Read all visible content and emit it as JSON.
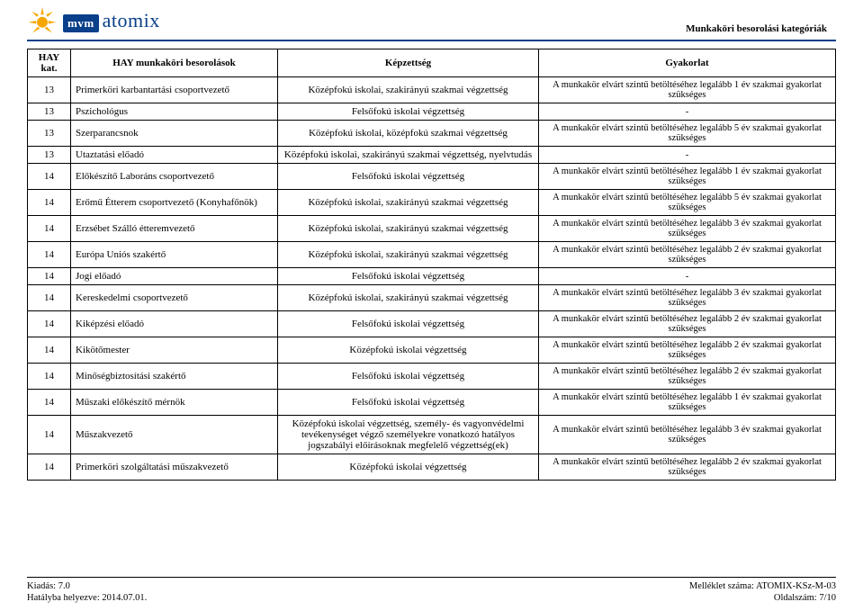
{
  "header": {
    "logo_mvm": "mvm",
    "logo_atomix": "atomix",
    "category": "Munkaköri besorolási kategóriák",
    "sun_color_outer": "#f7a600",
    "sun_color_inner": "#f7a600",
    "brand_blue": "#0a3f8a"
  },
  "table": {
    "headers": {
      "h1": "HAY kat.",
      "h2": "HAY munkaköri besorolások",
      "h3": "Képzettség",
      "h4": "Gyakorlat"
    },
    "rows": [
      {
        "n": "13",
        "role": "Primerköri karbantartási csoportvezető",
        "edu": "Középfokú iskolai, szakirányú szakmai végzettség",
        "req": "A munkakör elvárt szintű betöltéséhez legalább 1 év szakmai gyakorlat szükséges"
      },
      {
        "n": "13",
        "role": "Pszichológus",
        "edu": "Felsőfokú iskolai végzettség",
        "req": "-"
      },
      {
        "n": "13",
        "role": "Szerparancsnok",
        "edu": "Középfokú iskolai, középfokú szakmai végzettség",
        "req": "A munkakör elvárt szintű betöltéséhez legalább 5 év szakmai gyakorlat szükséges"
      },
      {
        "n": "13",
        "role": "Utaztatási előadó",
        "edu": "Középfokú iskolai, szakirányú szakmai végzettség, nyelvtudás",
        "req": "-"
      },
      {
        "n": "14",
        "role": "Előkészítő Laboráns csoportvezető",
        "edu": "Felsőfokú iskolai végzettség",
        "req": "A munkakör elvárt szintű betöltéséhez legalább 1 év szakmai gyakorlat szükséges"
      },
      {
        "n": "14",
        "role": "Erőmű Étterem csoportvezető (Konyhafőnök)",
        "edu": "Középfokú iskolai, szakirányú szakmai végzettség",
        "req": "A munkakör elvárt szintű betöltéséhez legalább 5 év szakmai gyakorlat szükséges"
      },
      {
        "n": "14",
        "role": "Erzsébet Szálló étteremvezető",
        "edu": "Középfokú iskolai, szakirányú szakmai végzettség",
        "req": "A munkakör elvárt szintű betöltéséhez legalább 3 év szakmai gyakorlat szükséges"
      },
      {
        "n": "14",
        "role": "Európa Uniós szakértő",
        "edu": "Középfokú iskolai, szakirányú szakmai végzettség",
        "req": "A munkakör elvárt szintű betöltéséhez legalább 2 év szakmai gyakorlat szükséges"
      },
      {
        "n": "14",
        "role": "Jogi előadó",
        "edu": "Felsőfokú iskolai végzettség",
        "req": "-"
      },
      {
        "n": "14",
        "role": "Kereskedelmi csoportvezető",
        "edu": "Középfokú iskolai, szakirányú szakmai végzettség",
        "req": "A munkakör elvárt szintű betöltéséhez legalább 3 év szakmai gyakorlat szükséges"
      },
      {
        "n": "14",
        "role": "Kiképzési előadó",
        "edu": "Felsőfokú iskolai végzettség",
        "req": "A munkakör elvárt szintű betöltéséhez legalább 2 év szakmai gyakorlat szükséges"
      },
      {
        "n": "14",
        "role": "Kikötőmester",
        "edu": "Középfokú iskolai végzettség",
        "req": "A munkakör elvárt szintű betöltéséhez legalább 2 év szakmai gyakorlat szükséges"
      },
      {
        "n": "14",
        "role": "Minőségbiztosítási szakértő",
        "edu": "Felsőfokú iskolai végzettség",
        "req": "A munkakör elvárt szintű betöltéséhez legalább 2 év szakmai gyakorlat szükséges"
      },
      {
        "n": "14",
        "role": "Műszaki előkészítő mérnök",
        "edu": "Felsőfokú iskolai végzettség",
        "req": "A munkakör elvárt szintű betöltéséhez legalább 1 év szakmai gyakorlat szükséges"
      },
      {
        "n": "14",
        "role": "Műszakvezető",
        "edu": "Középfokú iskolai végzettség, személy- és vagyonvédelmi tevékenységet végző személyekre vonatkozó hatályos jogszabályi előírásoknak megfelelő végzettség(ek)",
        "req": "A munkakör elvárt szintű betöltéséhez legalább 3 év szakmai gyakorlat szükséges"
      },
      {
        "n": "14",
        "role": "Primerköri szolgáltatási műszakvezető",
        "edu": "Középfokú iskolai végzettség",
        "req": "A munkakör elvárt szintű betöltéséhez legalább 2 év szakmai gyakorlat szükséges"
      }
    ]
  },
  "footer": {
    "left1": "Kiadás: 7.0",
    "left2": "Hatályba helyezve: 2014.07.01.",
    "right1": "Melléklet száma: ATOMIX-KSz-M-03",
    "right2": "Oldalszám: 7/10"
  }
}
